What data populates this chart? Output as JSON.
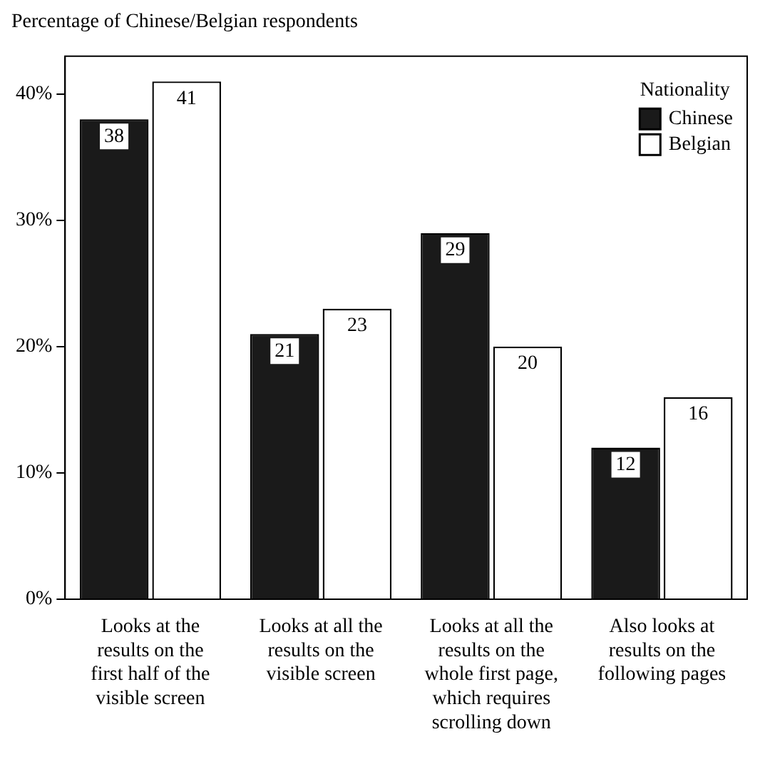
{
  "chart_data": {
    "type": "bar",
    "ylabel": "Percentage of Chinese/Belgian respondents",
    "categories": [
      "Looks at the results on the first half of the visible screen",
      "Looks at all the results on the visible screen",
      "Looks at all the results on the whole first page, which requires scrolling down",
      "Also looks at results on the following pages"
    ],
    "series": [
      {
        "name": "Chinese",
        "color": "#1a1a1a",
        "values": [
          38,
          21,
          29,
          12
        ]
      },
      {
        "name": "Belgian",
        "color": "#ffffff",
        "values": [
          41,
          23,
          20,
          16
        ]
      }
    ],
    "ylim": [
      0,
      43
    ],
    "yticks": [
      {
        "value": 0,
        "label": "0%"
      },
      {
        "value": 10,
        "label": "10%"
      },
      {
        "value": 20,
        "label": "20%"
      },
      {
        "value": 30,
        "label": "30%"
      },
      {
        "value": 40,
        "label": "40%"
      }
    ],
    "legend": "top right",
    "legend_title": "Nationality",
    "data_labels": true,
    "grid": false
  }
}
